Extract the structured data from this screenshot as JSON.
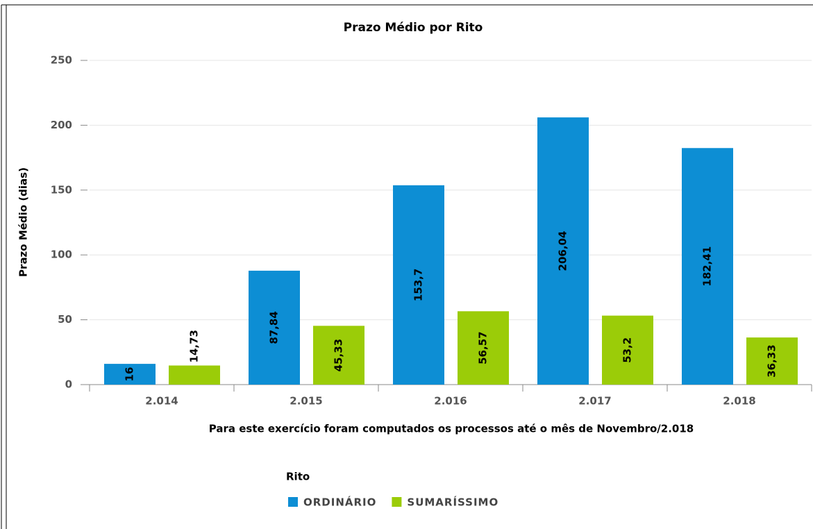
{
  "chart_data": {
    "type": "bar",
    "title": "Prazo Médio por Rito",
    "y_label": "Prazo Médio (dias)",
    "x_label": "Para este exercício foram computados os processos até o mês de Novembro/2.018",
    "categories": [
      "2.014",
      "2.015",
      "2.016",
      "2.017",
      "2.018"
    ],
    "series": [
      {
        "name": "ORDINÁRIO",
        "color": "#0d8ed4",
        "values": [
          16,
          87.84,
          153.7,
          206.04,
          182.41
        ],
        "value_labels": [
          "16",
          "87,84",
          "153,7",
          "206,04",
          "182,41"
        ]
      },
      {
        "name": "SUMARÍSSIMO",
        "color": "#9bcc08",
        "values": [
          14.73,
          45.33,
          56.57,
          53.2,
          36.33
        ],
        "value_labels": [
          "14,73",
          "45,33",
          "56,57",
          "53,2",
          "36,33"
        ]
      }
    ],
    "ylim": [
      0,
      250
    ],
    "yticks": [
      0,
      50,
      100,
      150,
      200,
      250
    ],
    "grid": true,
    "legend_title": "Rito",
    "legend": "bottom"
  }
}
